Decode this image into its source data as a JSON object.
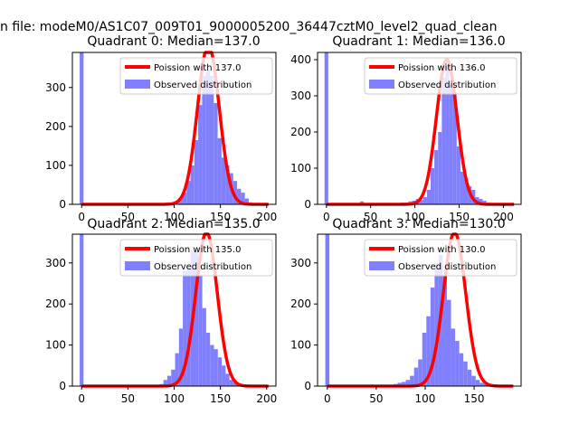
{
  "figure": {
    "suptitle": "n file: modeM0/AS1C07_009T01_9000005200_36447cztM0_level2_quad_clean",
    "legend_line_label_prefix": "Poission with",
    "legend_bar_label": "Observed distribution",
    "colors": {
      "poisson": "#ff0000",
      "observed": "#8080ff",
      "axes": "#000000",
      "background": "#ffffff"
    }
  },
  "chart_data": [
    {
      "type": "bar",
      "title": "Quadrant 0: Median=137.0",
      "legend_line": "Poission with 137.0",
      "legend_bar": "Observed distribution",
      "legend_position": "top-right",
      "median": 137.0,
      "poisson_peak": 410,
      "bin_width": 4.2,
      "xlim": [
        -10,
        210
      ],
      "ylim": [
        0,
        390
      ],
      "xticks": [
        0,
        50,
        100,
        150,
        200
      ],
      "yticks": [
        0,
        100,
        200,
        300
      ],
      "spike": {
        "x": 0,
        "value": 390
      },
      "bins_start": 84,
      "values": [
        2,
        3,
        5,
        5,
        8,
        15,
        30,
        60,
        100,
        165,
        255,
        330,
        345,
        330,
        260,
        170,
        120,
        100,
        80,
        60,
        40,
        30,
        15,
        5
      ]
    },
    {
      "type": "bar",
      "title": "Quadrant 1: Median=136.0",
      "legend_line": "Poission with 136.0",
      "legend_bar": "Observed distribution",
      "legend_position": "top-right",
      "median": 136.0,
      "poisson_peak": 400,
      "bin_width": 4.2,
      "xlim": [
        -10,
        220
      ],
      "ylim": [
        0,
        420
      ],
      "xticks": [
        0,
        50,
        100,
        150,
        200
      ],
      "yticks": [
        0,
        100,
        200,
        300,
        400
      ],
      "spike": {
        "x": 0,
        "value": 420
      },
      "bins_start": 38,
      "values": [
        8,
        0,
        0,
        0,
        0,
        0,
        0,
        0,
        0,
        0,
        2,
        5,
        5,
        8,
        10,
        15,
        12,
        20,
        40,
        100,
        150,
        200,
        350,
        385,
        330,
        310,
        160,
        90,
        70,
        50,
        40,
        20,
        15,
        10,
        5,
        3
      ]
    },
    {
      "type": "bar",
      "title": "Quadrant 2: Median=135.0",
      "legend_line": "Poission with 135.0",
      "legend_bar": "Observed distribution",
      "legend_position": "top-right",
      "median": 135.0,
      "poisson_peak": 375,
      "bin_width": 4.2,
      "xlim": [
        -10,
        210
      ],
      "ylim": [
        0,
        370
      ],
      "xticks": [
        0,
        50,
        100,
        150,
        200
      ],
      "yticks": [
        0,
        100,
        200,
        300
      ],
      "spike": {
        "x": 0,
        "value": 370
      },
      "bins_start": 80,
      "values": [
        3,
        5,
        15,
        25,
        40,
        80,
        140,
        280,
        290,
        330,
        330,
        270,
        190,
        130,
        100,
        90,
        70,
        50,
        30,
        15,
        8,
        5,
        2
      ]
    },
    {
      "type": "bar",
      "title": "Quadrant 3: Median=130.0",
      "legend_line": "Poission with 130.0",
      "legend_bar": "Observed distribution",
      "legend_position": "top-right",
      "median": 130.0,
      "poisson_peak": 375,
      "bin_width": 4.2,
      "xlim": [
        -10,
        198
      ],
      "ylim": [
        0,
        370
      ],
      "xticks": [
        0,
        50,
        100,
        150
      ],
      "yticks": [
        0,
        100,
        200,
        300
      ],
      "spike": {
        "x": 0,
        "value": 370
      },
      "bins_start": 55,
      "values": [
        2,
        3,
        3,
        5,
        8,
        10,
        15,
        25,
        45,
        65,
        130,
        170,
        240,
        300,
        320,
        270,
        210,
        140,
        110,
        80,
        60,
        40,
        25,
        15,
        8,
        5,
        3
      ]
    }
  ]
}
